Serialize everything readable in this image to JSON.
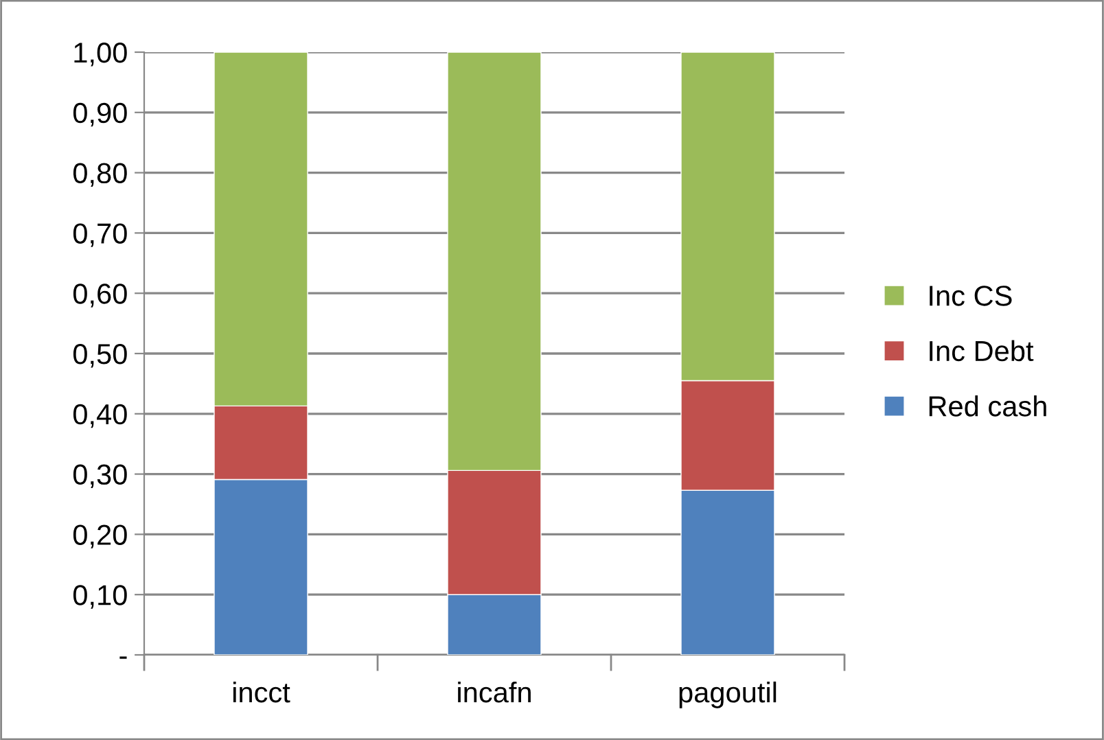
{
  "chart_data": {
    "type": "bar",
    "stacked": true,
    "categories": [
      "incct",
      "incafn",
      "pagoutil"
    ],
    "series": [
      {
        "name": "Red cash",
        "color": "#4f81bd",
        "values": [
          0.291,
          0.1,
          0.273
        ]
      },
      {
        "name": "Inc Debt",
        "color": "#c0504d",
        "values": [
          0.122,
          0.206,
          0.182
        ]
      },
      {
        "name": "Inc CS",
        "color": "#9bbb59",
        "values": [
          0.587,
          0.694,
          0.545
        ]
      }
    ],
    "ylim": [
      0,
      1
    ],
    "yticks": [
      {
        "value": 0,
        "label": "-"
      },
      {
        "value": 0.1,
        "label": "0,10"
      },
      {
        "value": 0.2,
        "label": "0,20"
      },
      {
        "value": 0.3,
        "label": "0,30"
      },
      {
        "value": 0.4,
        "label": "0,40"
      },
      {
        "value": 0.5,
        "label": "0,50"
      },
      {
        "value": 0.6,
        "label": "0,60"
      },
      {
        "value": 0.7,
        "label": "0,70"
      },
      {
        "value": 0.8,
        "label": "0,80"
      },
      {
        "value": 0.9,
        "label": "0,90"
      },
      {
        "value": 1.0,
        "label": "1,00"
      }
    ],
    "grid": "y",
    "legend": "right"
  }
}
